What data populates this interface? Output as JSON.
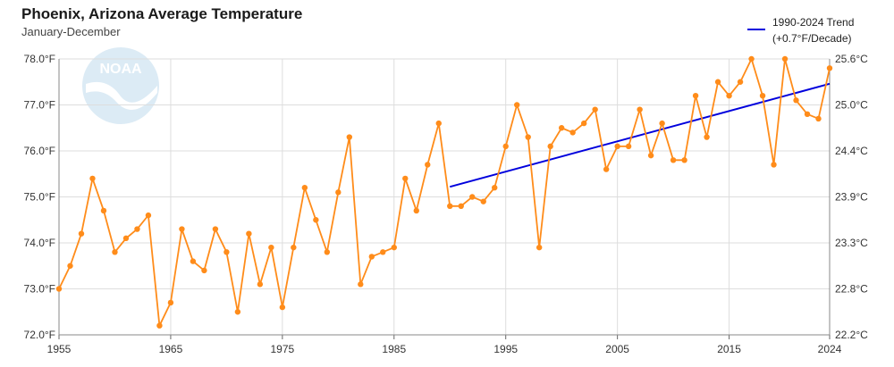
{
  "chart_data": {
    "type": "line",
    "title": "Phoenix, Arizona Average Temperature",
    "subtitle": "January-December",
    "logo": "NOAA",
    "xlim": [
      1955,
      2024
    ],
    "ylim": [
      72.0,
      78.0
    ],
    "x_ticks": [
      "1955",
      "1965",
      "1975",
      "1985",
      "1995",
      "2005",
      "2015",
      "2024"
    ],
    "y_ticks_left": [
      "72.0°F",
      "73.0°F",
      "74.0°F",
      "75.0°F",
      "76.0°F",
      "77.0°F",
      "78.0°F"
    ],
    "y_ticks_right": [
      "22.2°C",
      "22.8°C",
      "23.3°C",
      "23.9°C",
      "24.4°C",
      "25.0°C",
      "25.6°C"
    ],
    "grid": true,
    "legend_position": "top-right",
    "series": [
      {
        "x": [
          1955,
          1956,
          1957,
          1958,
          1959,
          1960,
          1961,
          1962,
          1963,
          1964,
          1965,
          1966,
          1967,
          1968,
          1969,
          1970,
          1971,
          1972,
          1973,
          1974,
          1975,
          1976,
          1977,
          1978,
          1979,
          1980,
          1981,
          1982,
          1983,
          1984,
          1985,
          1986,
          1987,
          1988,
          1989,
          1990,
          1991,
          1992,
          1993,
          1994,
          1995,
          1996,
          1997,
          1998,
          1999,
          2000,
          2001,
          2002,
          2003,
          2004,
          2005,
          2006,
          2007,
          2008,
          2009,
          2010,
          2011,
          2012,
          2013,
          2014,
          2015,
          2016,
          2017,
          2018,
          2019,
          2020,
          2021,
          2022,
          2023,
          2024
        ],
        "y": [
          73.0,
          73.5,
          74.2,
          75.4,
          74.7,
          73.8,
          74.1,
          74.3,
          74.6,
          72.2,
          72.7,
          74.3,
          73.6,
          73.4,
          74.3,
          73.8,
          72.5,
          74.2,
          73.1,
          73.9,
          72.6,
          73.9,
          75.2,
          74.5,
          73.8,
          75.1,
          76.3,
          73.1,
          73.7,
          73.8,
          73.9,
          75.4,
          74.7,
          75.7,
          76.6,
          74.8,
          74.8,
          75.0,
          74.9,
          75.2,
          76.1,
          77.0,
          76.3,
          73.9,
          76.1,
          76.5,
          76.4,
          76.6,
          76.9,
          75.6,
          76.1,
          76.1,
          76.9,
          75.9,
          76.6,
          75.8,
          75.8,
          77.2,
          76.3,
          77.5,
          77.2,
          77.5,
          78.0,
          77.2,
          75.7,
          78.0,
          77.1,
          76.8,
          76.7,
          77.8
        ],
        "color": "#ff8c1a"
      },
      {
        "name": "1990-2024 Trend",
        "name_line2": "(+0.7°F/Decade)",
        "x": [
          1990,
          2024
        ],
        "y": [
          75.22,
          77.46
        ],
        "color": "#0000dd"
      }
    ]
  }
}
